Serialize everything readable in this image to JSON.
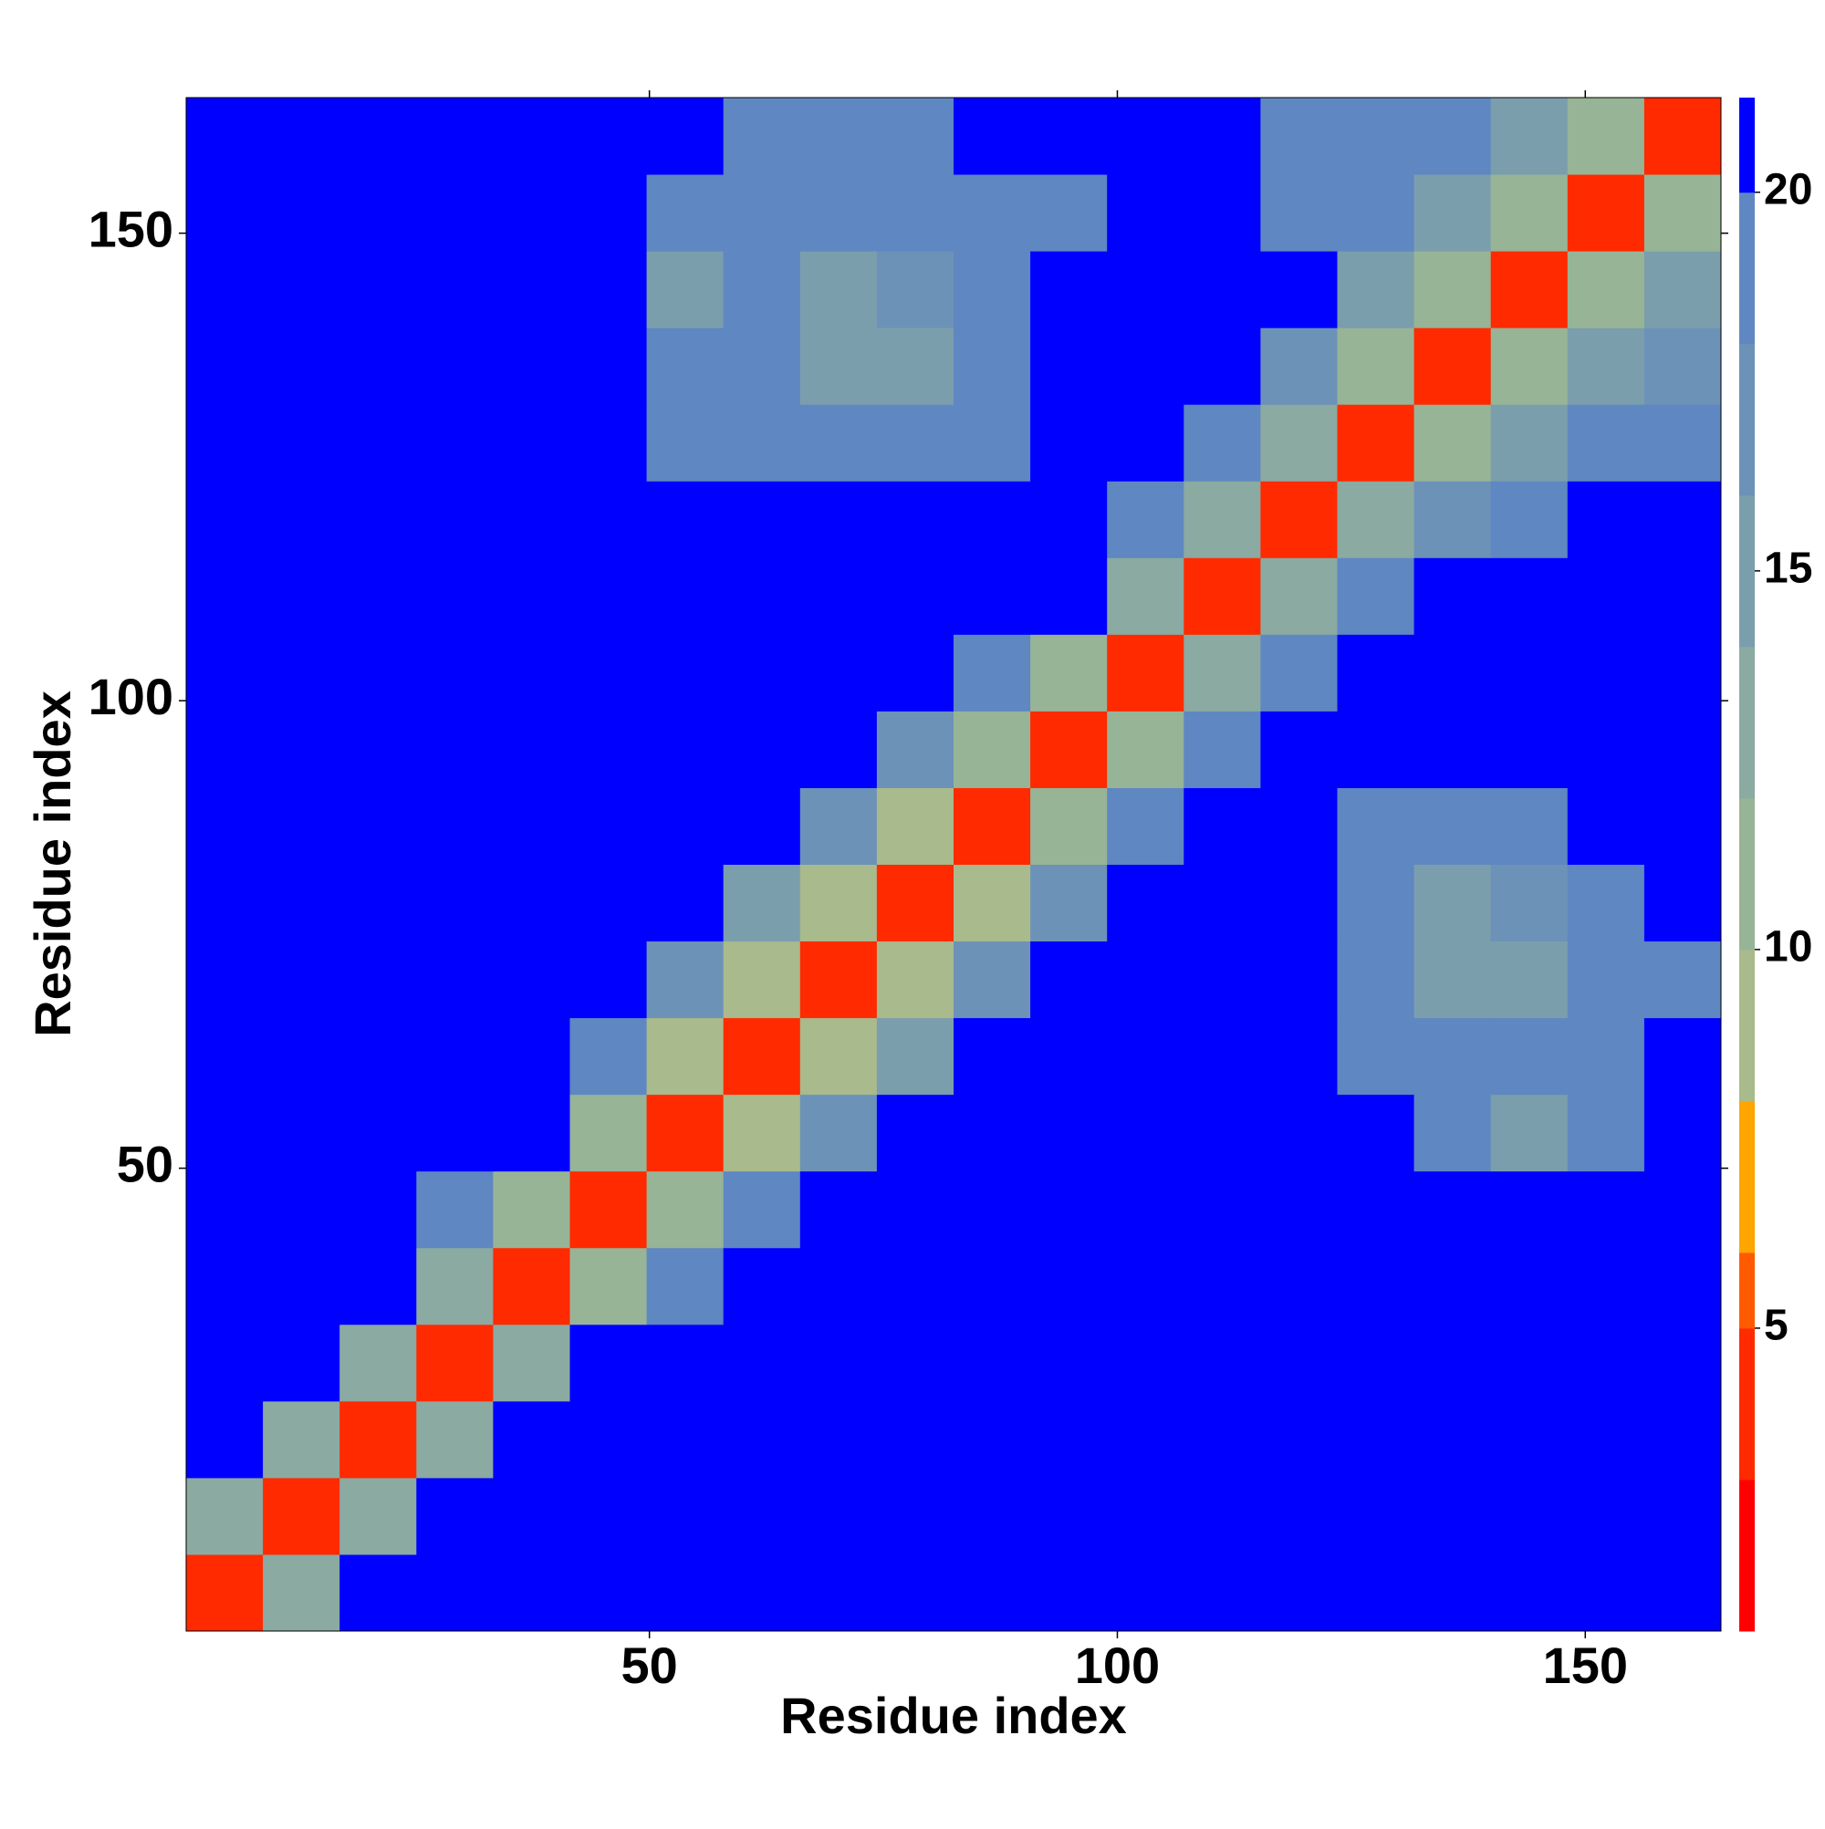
{
  "chart_data": {
    "type": "heatmap",
    "xlabel": "Residue index",
    "ylabel": "Residue index",
    "xlim": [
      0.5,
      164.5
    ],
    "ylim": [
      0.5,
      164.5
    ],
    "xticks": [
      50,
      100,
      150
    ],
    "yticks": [
      50,
      100,
      150
    ],
    "xbins": [
      0.5,
      8.7,
      16.9,
      25.1,
      33.3,
      41.5,
      49.7,
      57.9,
      66.1,
      74.3,
      82.5,
      90.7,
      98.9,
      107.1,
      115.3,
      123.5,
      131.7,
      139.9,
      148.1,
      156.3,
      164.5
    ],
    "ybins": [
      0.5,
      8.7,
      16.9,
      25.1,
      33.3,
      41.5,
      49.7,
      57.9,
      66.1,
      74.3,
      82.5,
      90.7,
      98.9,
      107.1,
      115.3,
      123.5,
      131.7,
      139.9,
      148.1,
      156.3,
      164.5
    ],
    "z": [
      [
        4,
        12,
        21,
        21,
        21,
        21,
        21,
        21,
        21,
        21,
        21,
        21,
        21,
        21,
        21,
        21,
        21,
        21,
        21,
        21
      ],
      [
        12,
        4,
        12,
        21,
        21,
        21,
        21,
        21,
        21,
        21,
        21,
        21,
        21,
        21,
        21,
        21,
        21,
        21,
        21,
        21
      ],
      [
        21,
        12,
        4,
        12,
        21,
        21,
        21,
        21,
        21,
        21,
        21,
        21,
        21,
        21,
        21,
        21,
        21,
        21,
        21,
        21
      ],
      [
        21,
        21,
        12,
        4,
        12,
        21,
        21,
        21,
        21,
        21,
        21,
        21,
        21,
        21,
        21,
        21,
        21,
        21,
        21,
        21
      ],
      [
        21,
        21,
        21,
        12,
        4,
        11,
        19,
        21,
        21,
        21,
        21,
        21,
        21,
        21,
        21,
        21,
        21,
        21,
        21,
        21
      ],
      [
        21,
        21,
        21,
        19,
        11,
        4,
        10,
        18,
        21,
        21,
        21,
        21,
        21,
        21,
        21,
        21,
        21,
        21,
        21,
        21
      ],
      [
        21,
        21,
        21,
        21,
        21,
        10,
        4,
        9,
        17,
        21,
        21,
        21,
        21,
        21,
        21,
        21,
        19,
        14,
        19,
        21
      ],
      [
        21,
        21,
        21,
        21,
        21,
        18,
        9,
        4,
        8,
        15,
        21,
        21,
        21,
        21,
        21,
        19,
        19,
        19,
        19,
        21
      ],
      [
        21,
        21,
        21,
        21,
        21,
        21,
        17,
        8,
        4,
        8,
        16,
        21,
        21,
        21,
        21,
        19,
        15,
        15,
        18,
        19
      ],
      [
        21,
        21,
        21,
        21,
        21,
        21,
        21,
        15,
        8,
        4,
        9,
        17,
        21,
        21,
        21,
        19,
        15,
        16,
        18,
        21
      ],
      [
        21,
        21,
        21,
        21,
        21,
        21,
        21,
        21,
        16,
        9,
        4,
        10,
        19,
        21,
        21,
        19,
        19,
        19,
        21,
        21
      ],
      [
        21,
        21,
        21,
        21,
        21,
        21,
        21,
        21,
        21,
        17,
        10,
        4,
        11,
        19,
        21,
        21,
        21,
        21,
        21,
        21
      ],
      [
        21,
        21,
        21,
        21,
        21,
        21,
        21,
        21,
        21,
        21,
        19,
        11,
        4,
        12,
        18,
        21,
        21,
        21,
        21,
        21
      ],
      [
        21,
        21,
        21,
        21,
        21,
        21,
        21,
        21,
        21,
        21,
        21,
        21,
        12,
        4,
        12,
        19,
        21,
        21,
        21,
        21
      ],
      [
        21,
        21,
        21,
        21,
        21,
        21,
        21,
        21,
        21,
        21,
        21,
        21,
        18,
        12,
        4,
        12,
        16,
        19,
        21,
        21
      ],
      [
        21,
        21,
        21,
        21,
        21,
        21,
        19,
        19,
        18,
        18,
        19,
        21,
        21,
        19,
        12,
        4,
        11,
        15,
        18,
        19
      ],
      [
        21,
        21,
        21,
        21,
        21,
        21,
        19,
        18,
        15,
        15,
        18,
        21,
        21,
        21,
        16,
        11,
        4,
        11,
        15,
        17
      ],
      [
        21,
        21,
        21,
        21,
        21,
        21,
        15,
        19,
        15,
        16,
        19,
        21,
        21,
        21,
        21,
        15,
        11,
        4,
        11,
        15
      ],
      [
        21,
        21,
        21,
        21,
        21,
        21,
        19,
        18,
        18,
        18,
        19,
        19,
        21,
        21,
        19,
        18,
        15,
        11,
        4,
        11
      ],
      [
        21,
        21,
        21,
        21,
        21,
        21,
        21,
        19,
        19,
        19,
        21,
        21,
        21,
        21,
        19,
        19,
        18,
        15,
        11,
        4
      ]
    ],
    "colorbar": {
      "zlim": [
        1,
        21.25
      ],
      "zticks": [
        5,
        10,
        15,
        20
      ],
      "levels": [
        1,
        3,
        5,
        6,
        8,
        10,
        12,
        14,
        16,
        18,
        20,
        21.25
      ],
      "colors": [
        "#ff0000",
        "#ff2a00",
        "#ff5a00",
        "#ffa500",
        "#a9ba8c",
        "#97b496",
        "#8aaaa2",
        "#7b9ead",
        "#6c92b8",
        "#5f87c2",
        "#0000ff"
      ]
    }
  }
}
